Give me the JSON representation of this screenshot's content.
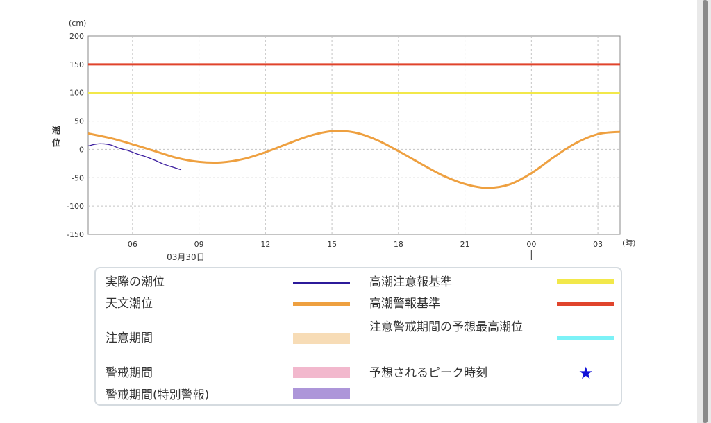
{
  "chart_data": {
    "type": "line",
    "y_unit": "(cm)",
    "ylabel": "潮位",
    "x_unit": "(時)",
    "ylim": [
      -150,
      200
    ],
    "yticks": [
      200,
      150,
      100,
      50,
      0,
      -50,
      -100,
      -150
    ],
    "xticks": [
      "06",
      "09",
      "12",
      "15",
      "18",
      "21",
      "00",
      "03"
    ],
    "date_label": "03月30日",
    "grid": true,
    "thresholds": [
      {
        "name": "高潮注意報基準",
        "value": 100,
        "color": "#f2e84a"
      },
      {
        "name": "高潮警報基準",
        "value": 150,
        "color": "#e0442c"
      }
    ],
    "series": [
      {
        "name": "天文潮位",
        "color": "#eea040",
        "x_hours": [
          4,
          5,
          6,
          7,
          8,
          9,
          10,
          11,
          12,
          13,
          14,
          15,
          16,
          17,
          18,
          19,
          20,
          21,
          22,
          23,
          24,
          25,
          26,
          27,
          28
        ],
        "values": [
          28,
          20,
          9,
          -3,
          -15,
          -22,
          -23,
          -17,
          -5,
          10,
          24,
          32,
          30,
          17,
          -3,
          -25,
          -46,
          -61,
          -68,
          -62,
          -42,
          -14,
          11,
          27,
          31
        ]
      },
      {
        "name": "実際の潮位",
        "color": "#3a1c9e",
        "x_hours": [
          4,
          4.3,
          4.6,
          5,
          5.4,
          5.8,
          6.2,
          6.6,
          7,
          7.4,
          7.8,
          8.2
        ],
        "values": [
          6,
          9,
          10,
          8,
          2,
          -2,
          -8,
          -13,
          -19,
          -26,
          -31,
          -36
        ]
      }
    ]
  },
  "legend": {
    "items": [
      {
        "label": "実際の潮位",
        "color": "#2c1a9a"
      },
      {
        "label": "天文潮位",
        "color": "#eea040"
      },
      {
        "label": "注意期間",
        "color": "#f7dcb6"
      },
      {
        "label": "警戒期間",
        "color": "#f2b8cd"
      },
      {
        "label": "警戒期間(特別警報)",
        "color": "#ad96d9"
      },
      {
        "label": "高潮注意報基準",
        "color": "#f2e84a"
      },
      {
        "label": "高潮警報基準",
        "color": "#e0442c"
      },
      {
        "label": "注意警戒期間の予想最高潮位",
        "color": "#7cf2f7"
      },
      {
        "label": "予想されるピーク時刻",
        "color": "#1010d8",
        "icon": "star-icon",
        "symbol": "★"
      }
    ]
  }
}
